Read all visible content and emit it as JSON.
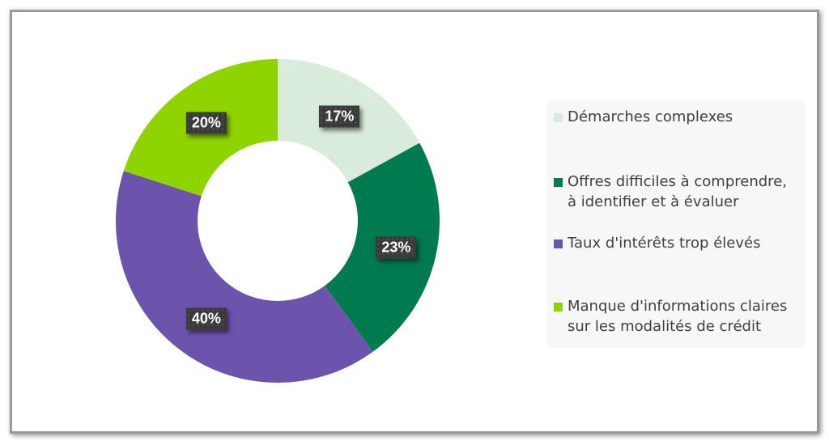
{
  "chart_data": {
    "type": "pie",
    "donut": true,
    "categories": [
      "Démarches complexes",
      "Offres difficiles à comprendre, à identifier et à évaluer",
      "Taux d'intérêts trop élevés",
      "Manque d'informations claires sur les modalités de crédit"
    ],
    "values": [
      17,
      23,
      40,
      20
    ],
    "data_labels": [
      "17%",
      "23%",
      "40%",
      "20%"
    ],
    "colors": [
      "#d9ebdb",
      "#007a4f",
      "#6c54ad",
      "#8fd400"
    ],
    "legend_lines": [
      [
        "Démarches complexes"
      ],
      [
        "Offres difficiles à comprendre,",
        "à identifier et à évaluer"
      ],
      [
        "Taux d'intérêts trop élevés"
      ],
      [
        "Manque d'informations claires",
        "sur les modalités de crédit"
      ]
    ],
    "legend_position": "right",
    "title": ""
  }
}
